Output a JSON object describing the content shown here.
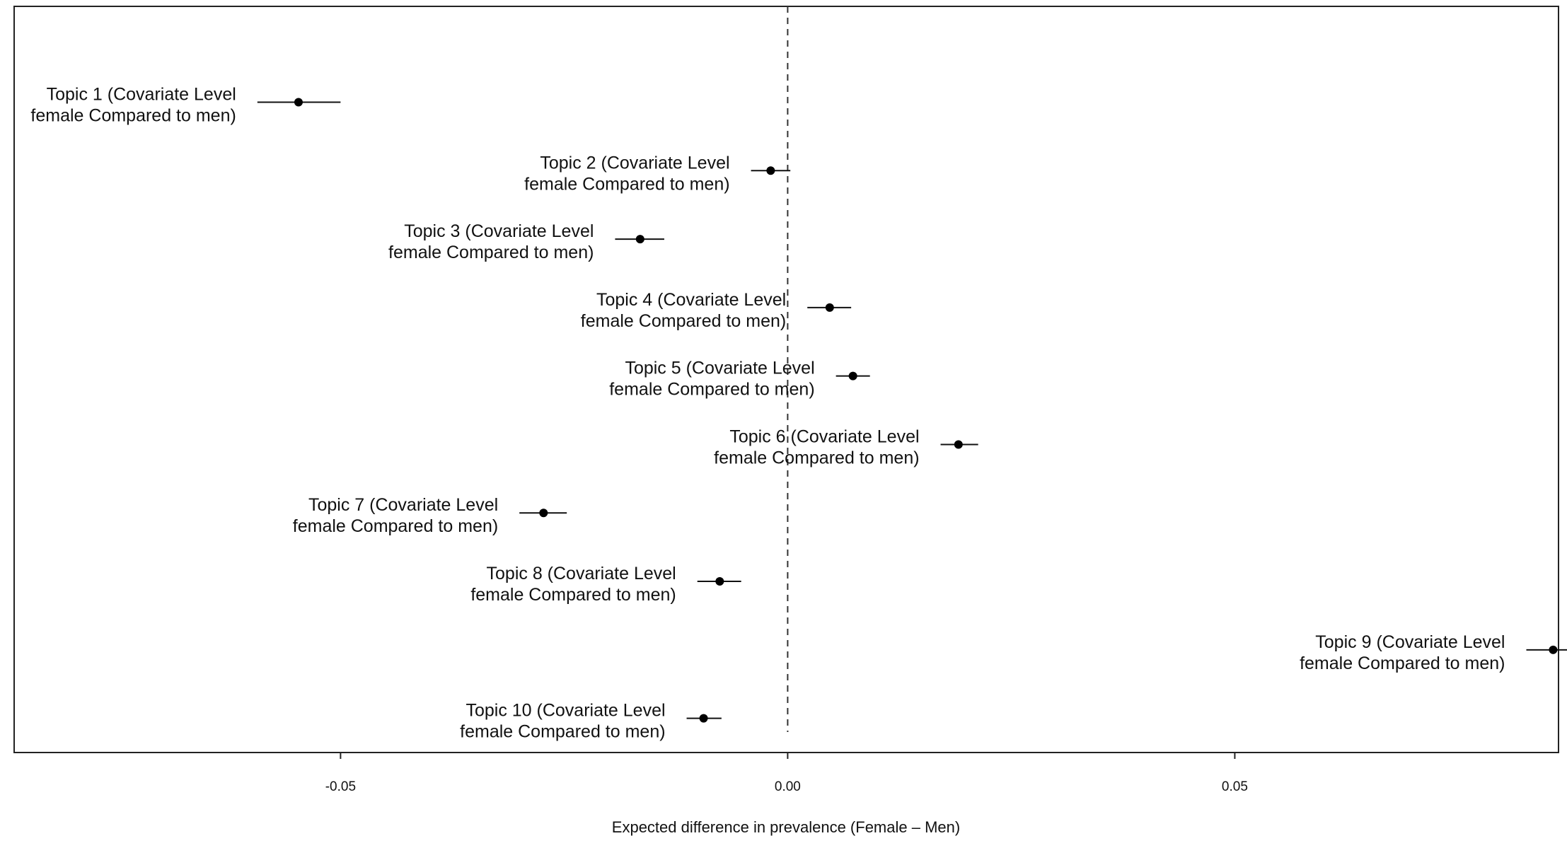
{
  "chart_data": {
    "type": "scatter",
    "xlabel": "Expected difference in prevalence (Female – Men)",
    "xlim": [
      -0.0865,
      0.0862
    ],
    "ylim": [
      0.5,
      11.4
    ],
    "x_ticks": [
      {
        "value": -0.05,
        "label": "-0.05"
      },
      {
        "value": 0.0,
        "label": "0.00"
      },
      {
        "value": 0.05,
        "label": "0.05"
      }
    ],
    "reference_line": {
      "x": 0,
      "style": "dashed"
    },
    "grid": false,
    "legend": "none",
    "points": [
      {
        "label_line1": "Topic 1 (Covariate Level",
        "label_line2": "female Compared to men)",
        "estimate": -0.0547,
        "ci": [
          -0.0593,
          -0.05
        ],
        "y": 10
      },
      {
        "label_line1": "Topic 2 (Covariate Level",
        "label_line2": "female Compared to men)",
        "estimate": -0.0019,
        "ci": [
          -0.0041,
          0.0003
        ],
        "y": 9
      },
      {
        "label_line1": "Topic 3 (Covariate Level",
        "label_line2": "female Compared to men)",
        "estimate": -0.0165,
        "ci": [
          -0.0193,
          -0.0138
        ],
        "y": 8
      },
      {
        "label_line1": "Topic 4 (Covariate Level",
        "label_line2": "female Compared to men)",
        "estimate": 0.0047,
        "ci": [
          0.0022,
          0.0071
        ],
        "y": 7
      },
      {
        "label_line1": "Topic 5 (Covariate Level",
        "label_line2": "female Compared to men)",
        "estimate": 0.0073,
        "ci": [
          0.0054,
          0.0092
        ],
        "y": 6
      },
      {
        "label_line1": "Topic 6 (Covariate Level",
        "label_line2": "female Compared to men)",
        "estimate": 0.0191,
        "ci": [
          0.0171,
          0.0213
        ],
        "y": 5
      },
      {
        "label_line1": "Topic 7 (Covariate Level",
        "label_line2": "female Compared to men)",
        "estimate": -0.0273,
        "ci": [
          -0.03,
          -0.0247
        ],
        "y": 4
      },
      {
        "label_line1": "Topic 8 (Covariate Level",
        "label_line2": "female Compared to men)",
        "estimate": -0.0076,
        "ci": [
          -0.0101,
          -0.0052
        ],
        "y": 3
      },
      {
        "label_line1": "Topic 9 (Covariate Level",
        "label_line2": "female Compared to men)",
        "estimate": 0.0856,
        "ci": [
          0.0826,
          0.0885
        ],
        "y": 2
      },
      {
        "label_line1": "Topic 10 (Covariate Level",
        "label_line2": "female Compared to men)",
        "estimate": -0.0094,
        "ci": [
          -0.0113,
          -0.0074
        ],
        "y": 1
      }
    ]
  }
}
